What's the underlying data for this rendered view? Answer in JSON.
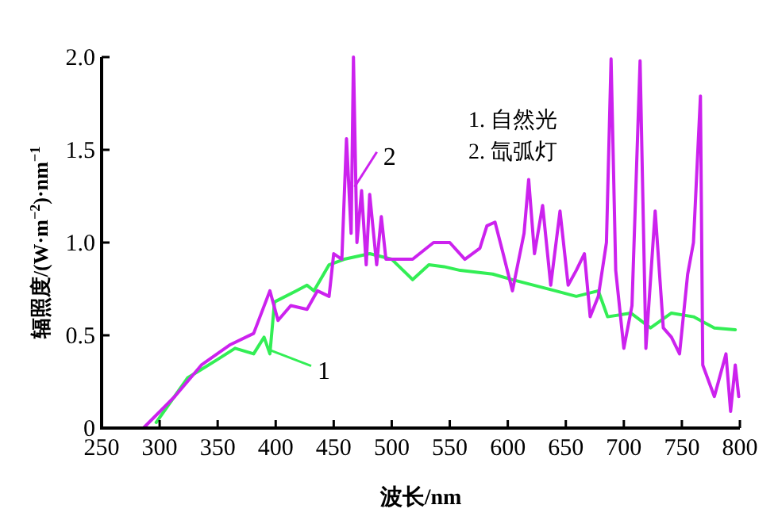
{
  "chart_data": {
    "type": "line",
    "xlabel": "波长/nm",
    "ylabel": "辐照度/(W·m$^{−2}$)·nm$^{−1}$",
    "xlim": [
      250,
      800
    ],
    "ylim": [
      0,
      2.0
    ],
    "xticks": [
      250,
      300,
      350,
      400,
      450,
      500,
      550,
      600,
      650,
      700,
      750,
      800
    ],
    "yticks": [
      {
        "value": 0,
        "label": "0"
      },
      0.5,
      {
        "value": 1,
        "label": "1.0"
      },
      1.5,
      {
        "value": 2,
        "label": "2.0"
      }
    ],
    "grid": false,
    "line_style": "solid",
    "series": [
      {
        "color": "#33ee55",
        "x": [
          297,
          324,
          350,
          365,
          381,
          390,
          395,
          399,
          418,
          427,
          433,
          446,
          459,
          481,
          500,
          518,
          532,
          545,
          559,
          587,
          604,
          641,
          659,
          678,
          686,
          706,
          723,
          741,
          760,
          778,
          796
        ],
        "values": [
          0.03,
          0.27,
          0.37,
          0.43,
          0.4,
          0.49,
          0.4,
          0.68,
          0.74,
          0.77,
          0.74,
          0.88,
          0.91,
          0.94,
          0.91,
          0.8,
          0.88,
          0.87,
          0.85,
          0.83,
          0.8,
          0.74,
          0.71,
          0.74,
          0.6,
          0.62,
          0.54,
          0.62,
          0.6,
          0.54,
          0.53
        ]
      },
      {
        "color": "#cc22ee",
        "x": [
          286,
          313,
          336,
          361,
          381,
          395,
          402,
          413,
          427,
          436,
          446,
          450,
          457,
          461,
          465,
          467,
          470,
          474,
          478,
          481,
          487,
          491,
          495,
          518,
          536,
          550,
          563,
          576,
          582,
          589,
          596,
          604,
          614,
          618,
          623,
          630,
          637,
          645,
          652,
          659,
          666,
          671,
          678,
          685,
          689,
          693,
          700,
          707,
          714,
          719,
          727,
          734,
          741,
          748,
          755,
          760,
          766,
          768,
          778,
          788,
          792,
          796,
          799
        ],
        "values": [
          0,
          0.17,
          0.34,
          0.45,
          0.51,
          0.74,
          0.58,
          0.66,
          0.64,
          0.74,
          0.71,
          0.94,
          0.91,
          1.56,
          1.05,
          2.0,
          1.0,
          1.28,
          0.88,
          1.26,
          0.88,
          1.14,
          0.91,
          0.91,
          1.0,
          1.0,
          0.91,
          0.97,
          1.09,
          1.11,
          0.94,
          0.74,
          1.05,
          1.34,
          0.94,
          1.2,
          0.77,
          1.17,
          0.77,
          0.85,
          0.94,
          0.6,
          0.71,
          1.0,
          1.99,
          0.85,
          0.43,
          0.66,
          1.98,
          0.43,
          1.17,
          0.54,
          0.49,
          0.4,
          0.83,
          1.0,
          1.79,
          0.34,
          0.17,
          0.4,
          0.09,
          0.34,
          0.17
        ]
      }
    ],
    "annotations": [
      {
        "text": "1",
        "x": 395,
        "y": 0.42
      },
      {
        "text": "2",
        "x": 468,
        "y": 1.3
      },
      "1. 自然光",
      "2. 氙弧灯"
    ]
  }
}
